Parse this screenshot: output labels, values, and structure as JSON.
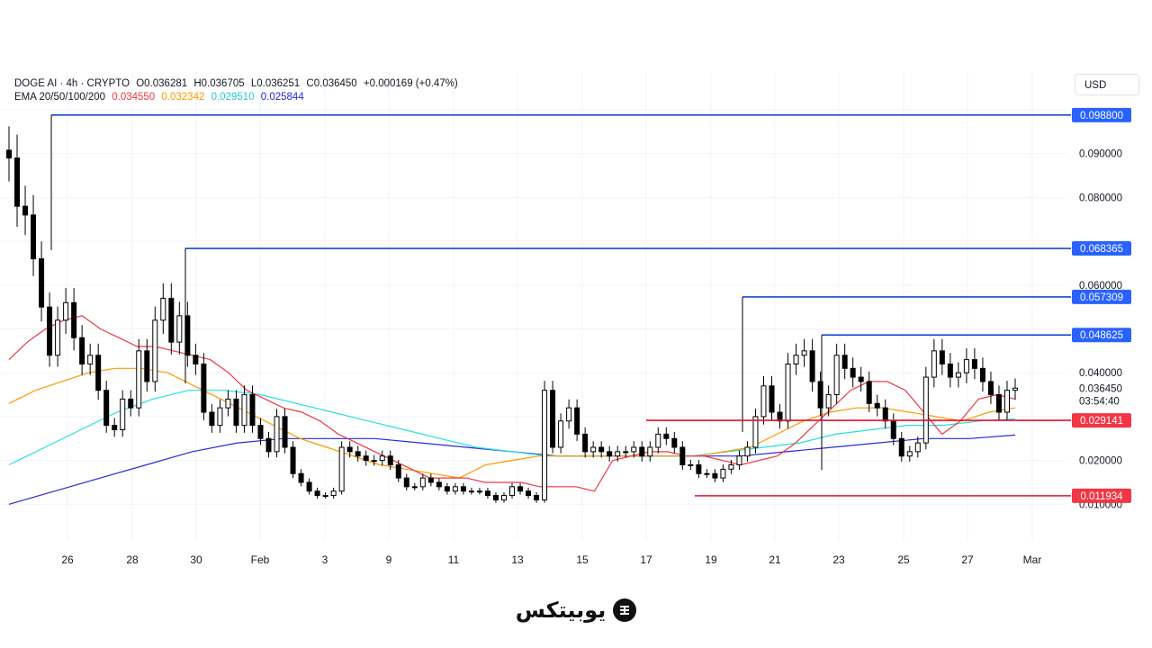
{
  "legend": {
    "symbol_line": "DOGE AI · 4h · CRYPTO",
    "open": "O0.036281",
    "high": "H0.036705",
    "low": "L0.036251",
    "close": "C0.036450",
    "change": "+0.000169 (+0.47%)",
    "ema_label": "EMA 20/50/100/200",
    "ema_values": [
      "0.034550",
      "0.032342",
      "0.029510",
      "0.025844"
    ]
  },
  "currency": "USD",
  "countdown": "03:54:40",
  "brand_name": "یوبیتکس",
  "colors": {
    "ema20": "#f23645",
    "ema50": "#ff9800",
    "ema100": "#26e0e0",
    "ema200": "#2929d9",
    "resistance": "#1848cc",
    "support": "#e8112d",
    "candle_up": "#ffffff",
    "candle_down": "#000000",
    "price_tag_blue": "#2962ff",
    "price_tag_red": "#f23645"
  },
  "chart_data": {
    "type": "candlestick",
    "ylim": [
      0.0,
      0.1
    ],
    "y_ticks": [
      "0.010000",
      "0.020000",
      "0.040000",
      "0.060000",
      "0.080000",
      "0.090000"
    ],
    "x_ticks": [
      "26",
      "28",
      "30",
      "Feb",
      "3",
      "9",
      "11",
      "13",
      "15",
      "17",
      "19",
      "21",
      "23",
      "25",
      "27",
      "Mar"
    ],
    "current_price": "0.036450",
    "horizontal_levels": [
      {
        "value": 0.0988,
        "label": "0.098800",
        "kind": "resistance"
      },
      {
        "value": 0.068365,
        "label": "0.068365",
        "kind": "resistance"
      },
      {
        "value": 0.057309,
        "label": "0.057309",
        "kind": "resistance"
      },
      {
        "value": 0.048625,
        "label": "0.048625",
        "kind": "resistance"
      },
      {
        "value": 0.029141,
        "label": "0.029141",
        "kind": "support"
      },
      {
        "value": 0.011934,
        "label": "0.011934",
        "kind": "support"
      }
    ],
    "candles_close": [
      0.089,
      0.078,
      0.076,
      0.066,
      0.055,
      0.044,
      0.052,
      0.056,
      0.048,
      0.042,
      0.044,
      0.036,
      0.028,
      0.027,
      0.034,
      0.032,
      0.045,
      0.038,
      0.052,
      0.057,
      0.047,
      0.053,
      0.044,
      0.042,
      0.031,
      0.028,
      0.032,
      0.034,
      0.028,
      0.035,
      0.028,
      0.025,
      0.022,
      0.03,
      0.023,
      0.017,
      0.015,
      0.013,
      0.012,
      0.012,
      0.013,
      0.023,
      0.022,
      0.021,
      0.02,
      0.02,
      0.021,
      0.019,
      0.016,
      0.014,
      0.014,
      0.016,
      0.015,
      0.014,
      0.013,
      0.014,
      0.013,
      0.013,
      0.013,
      0.012,
      0.011,
      0.012,
      0.014,
      0.013,
      0.012,
      0.011,
      0.036,
      0.023,
      0.029,
      0.032,
      0.026,
      0.022,
      0.023,
      0.022,
      0.021,
      0.022,
      0.022,
      0.023,
      0.021,
      0.023,
      0.026,
      0.025,
      0.023,
      0.019,
      0.019,
      0.017,
      0.017,
      0.016,
      0.018,
      0.019,
      0.021,
      0.023,
      0.03,
      0.037,
      0.031,
      0.029,
      0.042,
      0.044,
      0.045,
      0.038,
      0.032,
      0.035,
      0.044,
      0.041,
      0.039,
      0.038,
      0.033,
      0.032,
      0.029,
      0.025,
      0.021,
      0.022,
      0.024,
      0.039,
      0.045,
      0.042,
      0.039,
      0.04,
      0.043,
      0.041,
      0.038,
      0.035,
      0.031,
      0.036,
      0.0365
    ],
    "ema20": [
      0.043,
      0.047,
      0.05,
      0.052,
      0.053,
      0.05,
      0.048,
      0.046,
      0.046,
      0.045,
      0.044,
      0.043,
      0.04,
      0.036,
      0.034,
      0.032,
      0.031,
      0.029,
      0.026,
      0.024,
      0.022,
      0.02,
      0.018,
      0.016,
      0.016,
      0.016,
      0.015,
      0.015,
      0.015,
      0.014,
      0.014,
      0.014,
      0.013,
      0.02,
      0.021,
      0.022,
      0.022,
      0.021,
      0.021,
      0.02,
      0.019,
      0.02,
      0.021,
      0.024,
      0.028,
      0.032,
      0.036,
      0.038,
      0.038,
      0.036,
      0.031,
      0.026,
      0.029,
      0.034,
      0.035,
      0.034
    ],
    "ema50": [
      0.033,
      0.036,
      0.038,
      0.04,
      0.041,
      0.041,
      0.04,
      0.037,
      0.034,
      0.031,
      0.028,
      0.025,
      0.023,
      0.021,
      0.019,
      0.018,
      0.017,
      0.016,
      0.019,
      0.02,
      0.021,
      0.021,
      0.021,
      0.021,
      0.021,
      0.021,
      0.021,
      0.022,
      0.023,
      0.026,
      0.029,
      0.031,
      0.032,
      0.032,
      0.031,
      0.03,
      0.029,
      0.031,
      0.032
    ],
    "ema100": [
      0.019,
      0.023,
      0.027,
      0.031,
      0.034,
      0.036,
      0.036,
      0.035,
      0.033,
      0.031,
      0.029,
      0.027,
      0.025,
      0.023,
      0.022,
      0.021,
      0.021,
      0.021,
      0.021,
      0.021,
      0.022,
      0.023,
      0.024,
      0.026,
      0.027,
      0.028,
      0.028,
      0.029,
      0.0295
    ],
    "ema200": [
      0.01,
      0.013,
      0.016,
      0.019,
      0.022,
      0.024,
      0.025,
      0.025,
      0.025,
      0.024,
      0.023,
      0.022,
      0.021,
      0.021,
      0.021,
      0.021,
      0.021,
      0.022,
      0.023,
      0.024,
      0.025,
      0.025,
      0.0258
    ]
  }
}
